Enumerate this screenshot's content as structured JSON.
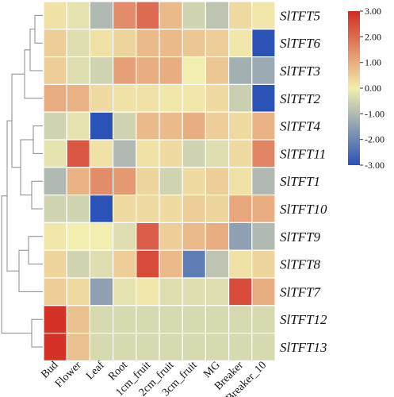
{
  "chart_data": {
    "type": "heatmap",
    "rows": [
      "SlTFT5",
      "SlTFT6",
      "SlTFT3",
      "SlTFT2",
      "SlTFT4",
      "SlTFT11",
      "SlTFT1",
      "SlTFT10",
      "SlTFT9",
      "SlTFT8",
      "SlTFT7",
      "SlTFT12",
      "SlTFT13"
    ],
    "columns": [
      "Bud",
      "Flower",
      "Leaf",
      "Root",
      "1cm_fruit",
      "2cm_fruit",
      "3cm_fruit",
      "MG",
      "Breaker",
      "Breaker_10"
    ],
    "values": [
      [
        0.2,
        -0.2,
        -1.0,
        1.5,
        2.0,
        0.8,
        -0.5,
        -0.8,
        0.3,
        0.1
      ],
      [
        0.5,
        -0.3,
        0.2,
        0.4,
        0.8,
        0.8,
        0.6,
        0.5,
        0.1,
        -3.0
      ],
      [
        0.5,
        -0.3,
        -0.5,
        1.2,
        1.0,
        1.0,
        0.0,
        0.6,
        -1.2,
        -1.3
      ],
      [
        1.0,
        0.9,
        0.3,
        0.2,
        0.2,
        0.1,
        0.1,
        0.3,
        -0.6,
        -3.0
      ],
      [
        -0.5,
        -0.2,
        -3.0,
        -0.5,
        0.8,
        0.8,
        1.0,
        0.5,
        0.3,
        0.9
      ],
      [
        -0.2,
        2.3,
        0.2,
        -1.0,
        0.2,
        0.3,
        -0.5,
        -0.3,
        0.3,
        1.6
      ],
      [
        -1.0,
        0.9,
        1.5,
        1.3,
        0.4,
        -0.5,
        0.3,
        0.5,
        0.2,
        -1.0
      ],
      [
        -0.5,
        -0.5,
        -3.0,
        0.3,
        0.3,
        0.3,
        0.5,
        0.4,
        1.1,
        1.0
      ],
      [
        0.1,
        0.0,
        0.0,
        -0.3,
        2.2,
        0.5,
        0.8,
        1.0,
        -1.5,
        -1.0
      ],
      [
        0.4,
        -0.5,
        -0.3,
        0.5,
        2.5,
        0.8,
        -2.2,
        -0.8,
        0.2,
        0.4
      ],
      [
        0.5,
        0.3,
        -1.5,
        -0.2,
        0.1,
        -0.3,
        -0.3,
        -0.3,
        2.5,
        1.0
      ],
      [
        2.9,
        0.7,
        -0.4,
        -0.4,
        -0.4,
        -0.4,
        -0.4,
        -0.4,
        -0.4,
        -0.4
      ],
      [
        2.9,
        0.7,
        -0.4,
        -0.4,
        -0.4,
        -0.4,
        -0.4,
        -0.4,
        -0.4,
        -0.4
      ]
    ],
    "colorbar": {
      "ticks": [
        "3.00",
        "2.00",
        "1.00",
        "0.00",
        "-1.00",
        "-2.00",
        "-3.00"
      ],
      "range": [
        -3,
        3
      ],
      "colors": {
        "low": "#2b52b6",
        "mid": "#f2eeb0",
        "high": "#d32a22"
      }
    },
    "dendrogram": "left"
  }
}
